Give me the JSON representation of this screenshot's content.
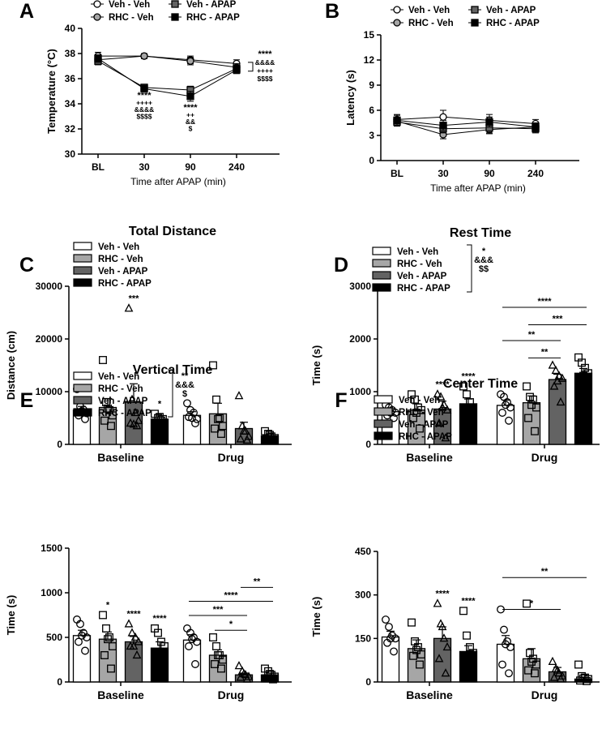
{
  "colors": {
    "veh_veh": "#ffffff",
    "rhc_veh": "#a6a6a6",
    "veh_apap": "#636363",
    "rhc_apap": "#000000",
    "stroke": "#000000"
  },
  "chart_data": [
    {
      "panel": "A",
      "type": "line",
      "title": "",
      "xlabel": "Time after APAP (min)",
      "ylabel": "Temperature (°C)",
      "categories": [
        "BL",
        "30",
        "90",
        "240"
      ],
      "yticks": [
        "30",
        "32",
        "34",
        "36",
        "38",
        "40"
      ],
      "ylim": [
        30,
        40
      ],
      "legend": [
        "Veh - Veh",
        "Veh - APAP",
        "RHC - Veh",
        "RHC - APAP"
      ],
      "series": [
        {
          "name": "Veh - Veh",
          "values": [
            37.8,
            37.8,
            37.5,
            37.2
          ],
          "err": [
            0.3,
            0.2,
            0.3,
            0.3
          ]
        },
        {
          "name": "RHC - Veh",
          "values": [
            37.5,
            37.8,
            37.4,
            36.9
          ],
          "err": [
            0.3,
            0.2,
            0.3,
            0.3
          ]
        },
        {
          "name": "Veh - APAP",
          "values": [
            37.4,
            35.3,
            35.1,
            36.8
          ],
          "err": [
            0.3,
            0.2,
            0.3,
            0.3
          ]
        },
        {
          "name": "RHC - APAP",
          "values": [
            37.6,
            35.2,
            34.6,
            36.7
          ],
          "err": [
            0.3,
            0.2,
            0.4,
            0.3
          ]
        }
      ],
      "point_sig": [
        {
          "category": "30",
          "lines": [
            "****",
            "++++",
            "&&&&",
            "$$$$"
          ]
        },
        {
          "category": "90",
          "lines": [
            "****",
            "++",
            "&&",
            "$"
          ]
        }
      ],
      "bracket_sig": [
        "****",
        "&&&&",
        "++++",
        "$$$$"
      ]
    },
    {
      "panel": "B",
      "type": "line",
      "title": "",
      "xlabel": "Time after APAP (min)",
      "ylabel": "Latency (s)",
      "categories": [
        "BL",
        "30",
        "90",
        "240"
      ],
      "yticks": [
        "0",
        "3",
        "6",
        "9",
        "12",
        "15"
      ],
      "ylim": [
        0,
        15
      ],
      "legend": [
        "Veh - Veh",
        "Veh - APAP",
        "RHC - Veh",
        "RHC - APAP"
      ],
      "series": [
        {
          "name": "Veh - Veh",
          "values": [
            4.9,
            5.2,
            4.8,
            4.4
          ],
          "err": [
            0.6,
            0.8,
            0.7,
            0.5
          ]
        },
        {
          "name": "RHC - Veh",
          "values": [
            4.7,
            3.1,
            3.7,
            4.0
          ],
          "err": [
            0.5,
            0.5,
            0.5,
            0.5
          ]
        },
        {
          "name": "Veh - APAP",
          "values": [
            4.6,
            3.8,
            3.9,
            3.8
          ],
          "err": [
            0.5,
            0.5,
            0.6,
            0.5
          ]
        },
        {
          "name": "RHC - APAP",
          "values": [
            4.8,
            4.2,
            4.6,
            4.0
          ],
          "err": [
            0.6,
            0.6,
            0.6,
            0.5
          ]
        }
      ]
    },
    {
      "panel": "C",
      "type": "bar",
      "title": "Total Distance",
      "xlabel": "",
      "ylabel": "Distance (cm)",
      "categories": [
        "Baseline",
        "Drug"
      ],
      "yticks": [
        "0",
        "10000",
        "20000",
        "30000"
      ],
      "ylim": [
        0,
        30000
      ],
      "legend": [
        "Veh - Veh",
        "RHC - Veh",
        "Veh - APAP",
        "RHC - APAP"
      ],
      "series": [
        {
          "name": "Veh - Veh",
          "values": [
            6500,
            5500
          ],
          "err": [
            700,
            700
          ],
          "points": [
            [
              10500,
              7200,
              6600,
              5900,
              5500,
              4800,
              6300
            ],
            [
              7800,
              6500,
              6000,
              4800,
              5200,
              4000,
              5000
            ]
          ]
        },
        {
          "name": "RHC - Veh",
          "values": [
            7000,
            5800
          ],
          "err": [
            1700,
            2000
          ],
          "points": [
            [
              16000,
              8000,
              6500,
              5500,
              4500,
              3500,
              6800
            ],
            [
              15000,
              8500,
              5000,
              3500,
              3000,
              2000,
              4800
            ]
          ]
        },
        {
          "name": "Veh - APAP",
          "values": [
            8000,
            3000
          ],
          "err": [
            3500,
            1200
          ],
          "points": [
            [
              25800,
              8500,
              6000,
              4500,
              4000,
              3500,
              3800
            ],
            [
              9200,
              3500,
              2500,
              1500,
              1000,
              800,
              2500
            ]
          ]
        },
        {
          "name": "RHC - APAP",
          "values": [
            4800,
            1600
          ],
          "err": [
            600,
            400
          ],
          "points": [
            [
              5800,
              5000,
              4500,
              3500,
              3000,
              4800,
              5200
            ],
            [
              2500,
              2000,
              1500,
              1200,
              1000,
              800,
              1800
            ]
          ]
        }
      ],
      "bar_sig": [
        {
          "category": "Baseline",
          "series": "Veh - APAP",
          "text": "***"
        },
        {
          "category": "Baseline",
          "series": "RHC - APAP",
          "text": "*"
        }
      ],
      "pairwise_sig": [],
      "legend_sig": []
    },
    {
      "panel": "D",
      "type": "bar",
      "title": "Rest Time",
      "xlabel": "",
      "ylabel": "Time (s)",
      "categories": [
        "Baseline",
        "Drug"
      ],
      "yticks": [
        "0",
        "1000",
        "2000",
        "3000"
      ],
      "ylim": [
        0,
        3000
      ],
      "legend": [
        "Veh - Veh",
        "RHC - Veh",
        "Veh - APAP",
        "RHC - APAP"
      ],
      "series": [
        {
          "name": "Veh - Veh",
          "values": [
            620,
            740
          ],
          "err": [
            60,
            100
          ],
          "points": [
            [
              750,
              700,
              650,
              600,
              550,
              500,
              600
            ],
            [
              950,
              900,
              800,
              700,
              600,
              450,
              750
            ]
          ]
        },
        {
          "name": "RHC - Veh",
          "values": [
            650,
            790
          ],
          "err": [
            120,
            130
          ],
          "points": [
            [
              950,
              850,
              700,
              650,
              500,
              300,
              600
            ],
            [
              1100,
              900,
              850,
              700,
              500,
              250,
              750
            ]
          ]
        },
        {
          "name": "Veh - APAP",
          "values": [
            670,
            1230
          ],
          "err": [
            150,
            100
          ],
          "points": [
            [
              950,
              900,
              750,
              650,
              400,
              120,
              700
            ],
            [
              1500,
              1400,
              1300,
              1250,
              1100,
              800,
              1200
            ]
          ]
        },
        {
          "name": "RHC - APAP",
          "values": [
            770,
            1350
          ],
          "err": [
            90,
            90
          ],
          "points": [
            [
              1100,
              950,
              800,
              700,
              650,
              600,
              700
            ],
            [
              1650,
              1550,
              1450,
              1350,
              1250,
              1200,
              1300
            ]
          ]
        }
      ],
      "bar_sig": [
        {
          "category": "Baseline",
          "series": "Veh - APAP",
          "text": "****"
        },
        {
          "category": "Baseline",
          "series": "RHC - APAP",
          "text": "****"
        }
      ],
      "pairwise_sig": [
        {
          "category": "Drug",
          "from": "Veh - Veh",
          "to": "RHC - APAP",
          "text": "****",
          "y": 2600
        },
        {
          "category": "Drug",
          "from": "RHC - Veh",
          "to": "RHC - APAP",
          "text": "***",
          "y": 2270
        },
        {
          "category": "Drug",
          "from": "Veh - Veh",
          "to": "Veh - APAP",
          "text": "**",
          "y": 1970
        },
        {
          "category": "Drug",
          "from": "RHC - Veh",
          "to": "Veh - APAP",
          "text": "**",
          "y": 1640
        }
      ],
      "legend_sig": [
        "*",
        "&&&",
        "$$"
      ]
    },
    {
      "panel": "E",
      "type": "bar",
      "title": "Vertical Time",
      "xlabel": "",
      "ylabel": "Time (s)",
      "categories": [
        "Baseline",
        "Drug"
      ],
      "yticks": [
        "0",
        "500",
        "1000",
        "1500"
      ],
      "ylim": [
        0,
        1500
      ],
      "legend": [
        "Veh - Veh",
        "RHC - Veh",
        "Veh - APAP",
        "RHC - APAP"
      ],
      "series": [
        {
          "name": "Veh - Veh",
          "values": [
            520,
            470
          ],
          "err": [
            60,
            60
          ],
          "points": [
            [
              700,
              650,
              550,
              500,
              450,
              350,
              520
            ],
            [
              600,
              550,
              500,
              450,
              400,
              200,
              480
            ]
          ]
        },
        {
          "name": "RHC - Veh",
          "values": [
            480,
            300
          ],
          "err": [
            80,
            60
          ],
          "points": [
            [
              750,
              600,
              500,
              400,
              300,
              150,
              480
            ],
            [
              500,
              400,
              300,
              250,
              200,
              150,
              300
            ]
          ]
        },
        {
          "name": "Veh - APAP",
          "values": [
            450,
            80
          ],
          "err": [
            60,
            20
          ],
          "points": [
            [
              650,
              550,
              500,
              450,
              400,
              300,
              400
            ],
            [
              180,
              120,
              80,
              60,
              50,
              30,
              90
            ]
          ]
        },
        {
          "name": "RHC - APAP",
          "values": [
            380,
            80
          ],
          "err": [
            70,
            20
          ],
          "points": [
            [
              600,
              550,
              450,
              400,
              300,
              150,
              250
            ],
            [
              150,
              120,
              80,
              60,
              40,
              30,
              90
            ]
          ]
        }
      ],
      "bar_sig": [
        {
          "category": "Baseline",
          "series": "RHC - Veh",
          "text": "*"
        },
        {
          "category": "Baseline",
          "series": "Veh - APAP",
          "text": "****"
        },
        {
          "category": "Baseline",
          "series": "RHC - APAP",
          "text": "****"
        }
      ],
      "pairwise_sig": [
        {
          "category": "Drug",
          "from": "Veh - APAP",
          "to": "RHC - APAP",
          "text": "**",
          "y": 1060
        },
        {
          "category": "Drug",
          "from": "Veh - Veh",
          "to": "RHC - APAP",
          "text": "****",
          "y": 905
        },
        {
          "category": "Drug",
          "from": "Veh - Veh",
          "to": "Veh - APAP",
          "text": "***",
          "y": 745
        },
        {
          "category": "Drug",
          "from": "RHC - Veh",
          "to": "Veh - APAP",
          "text": "*",
          "y": 580
        }
      ],
      "legend_sig": [
        "**",
        "&&&",
        "$"
      ]
    },
    {
      "panel": "F",
      "type": "bar",
      "title": "Center Time",
      "xlabel": "",
      "ylabel": "Time (s)",
      "categories": [
        "Baseline",
        "Drug"
      ],
      "yticks": [
        "0",
        "150",
        "300",
        "450"
      ],
      "ylim": [
        0,
        450
      ],
      "legend": [
        "Veh - Veh",
        "RHC - Veh",
        "Veh - APAP",
        "RHC - APAP"
      ],
      "series": [
        {
          "name": "Veh - Veh",
          "values": [
            155,
            130
          ],
          "err": [
            20,
            30
          ],
          "points": [
            [
              215,
              190,
              160,
              150,
              135,
              105,
              150
            ],
            [
              250,
              180,
              140,
              120,
              60,
              30,
              130
            ]
          ]
        },
        {
          "name": "RHC - Veh",
          "values": [
            115,
            80
          ],
          "err": [
            30,
            35
          ],
          "points": [
            [
              205,
              140,
              120,
              95,
              90,
              60,
              110
            ],
            [
              270,
              100,
              80,
              60,
              40,
              30,
              70
            ]
          ]
        },
        {
          "name": "Veh - APAP",
          "values": [
            150,
            35
          ],
          "err": [
            40,
            15
          ],
          "points": [
            [
              270,
              200,
              150,
              120,
              80,
              30,
              190
            ],
            [
              70,
              45,
              30,
              20,
              15,
              10,
              40
            ]
          ]
        },
        {
          "name": "RHC - APAP",
          "values": [
            105,
            10
          ],
          "err": [
            20,
            5
          ],
          "points": [
            [
              245,
              160,
              120,
              100,
              80,
              60,
              90
            ],
            [
              60,
              20,
              15,
              10,
              5,
              3,
              12
            ]
          ]
        }
      ],
      "bar_sig": [
        {
          "category": "Baseline",
          "series": "Veh - APAP",
          "text": "****"
        },
        {
          "category": "Baseline",
          "series": "RHC - APAP",
          "text": "****"
        }
      ],
      "pairwise_sig": [
        {
          "category": "Drug",
          "from": "Veh - Veh",
          "to": "RHC - APAP",
          "text": "**",
          "y": 360
        },
        {
          "category": "Drug",
          "from": "Veh - Veh",
          "to": "Veh - APAP",
          "text": "*",
          "y": 250
        }
      ],
      "legend_sig": []
    }
  ]
}
